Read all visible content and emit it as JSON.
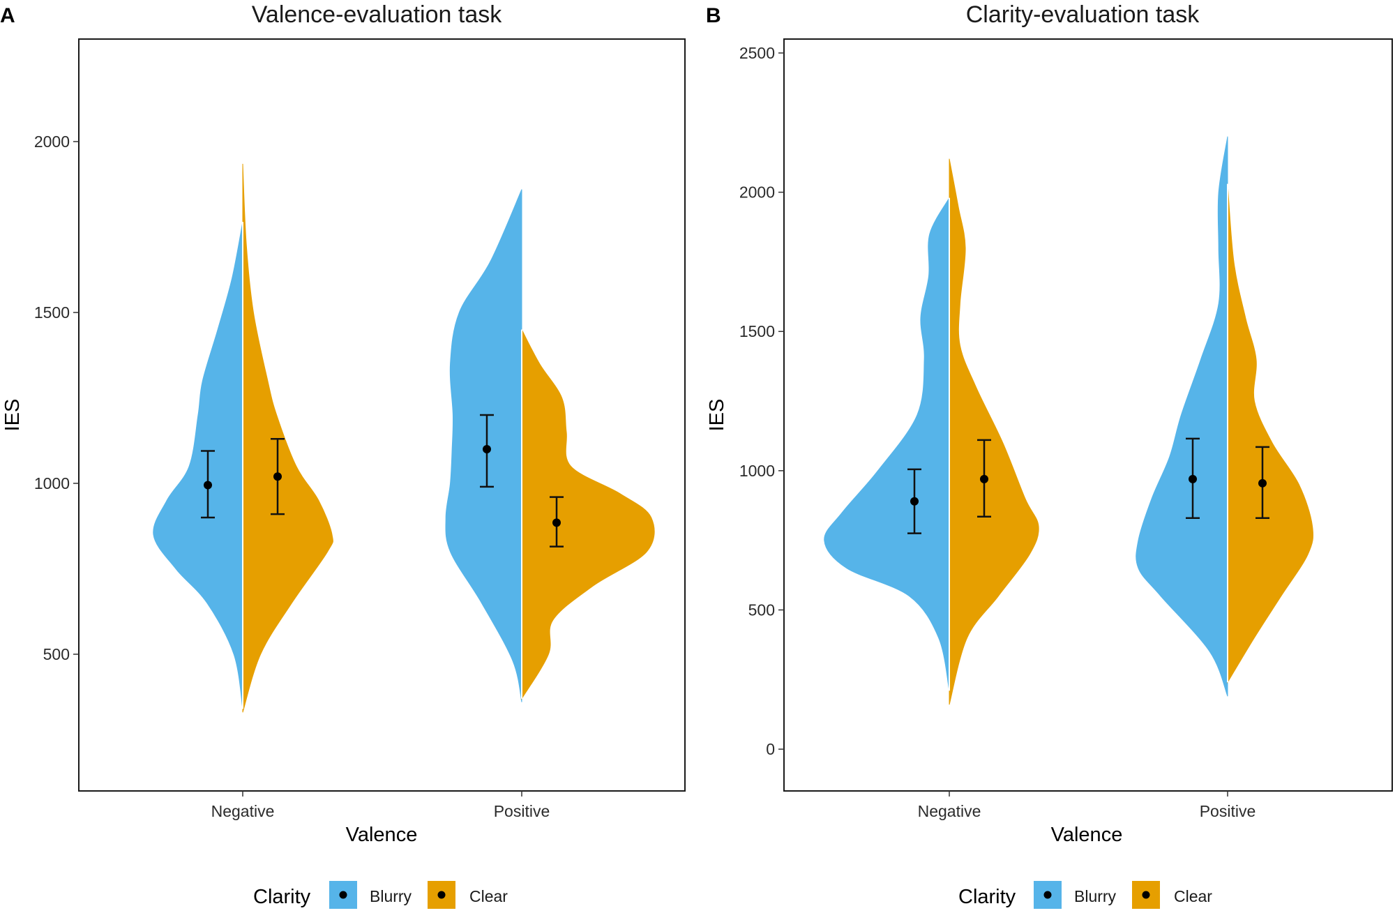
{
  "legend": {
    "title": "Clarity",
    "items": [
      {
        "label": "Blurry",
        "color": "#56B4E9"
      },
      {
        "label": "Clear",
        "color": "#E69F00"
      }
    ]
  },
  "chart_data": [
    {
      "tag": "A",
      "type": "split-violin",
      "title": "Valence-evaluation task",
      "xlabel": "Valence",
      "ylabel": "IES",
      "ylim": [
        100,
        2300
      ],
      "yticks": [
        500,
        1000,
        1500,
        2000
      ],
      "categories": [
        "Negative",
        "Positive"
      ],
      "series": [
        {
          "name": "Blurry",
          "color": "#56B4E9",
          "points": [
            {
              "category": "Negative",
              "mean": 995,
              "ci_low": 900,
              "ci_high": 1095,
              "density": [
                [
                  340,
                  0
                ],
                [
                  500,
                  0.1
                ],
                [
                  650,
                  0.4
                ],
                [
                  750,
                  0.75
                ],
                [
                  850,
                  1.0
                ],
                [
                  950,
                  0.85
                ],
                [
                  1050,
                  0.6
                ],
                [
                  1200,
                  0.5
                ],
                [
                  1300,
                  0.45
                ],
                [
                  1450,
                  0.28
                ],
                [
                  1600,
                  0.12
                ],
                [
                  1765,
                  0
                ]
              ]
            },
            {
              "category": "Positive",
              "mean": 1100,
              "ci_low": 990,
              "ci_high": 1200,
              "density": [
                [
                  360,
                  0
                ],
                [
                  480,
                  0.1
                ],
                [
                  650,
                  0.45
                ],
                [
                  800,
                  0.8
                ],
                [
                  900,
                  0.85
                ],
                [
                  1000,
                  0.8
                ],
                [
                  1100,
                  0.78
                ],
                [
                  1200,
                  0.77
                ],
                [
                  1350,
                  0.8
                ],
                [
                  1500,
                  0.7
                ],
                [
                  1650,
                  0.35
                ],
                [
                  1860,
                  0
                ]
              ]
            }
          ]
        },
        {
          "name": "Clear",
          "color": "#E69F00",
          "points": [
            {
              "category": "Negative",
              "mean": 1020,
              "ci_low": 910,
              "ci_high": 1130,
              "density": [
                [
                  330,
                  0
                ],
                [
                  500,
                  0.2
                ],
                [
                  650,
                  0.55
                ],
                [
                  800,
                  0.95
                ],
                [
                  850,
                  1.0
                ],
                [
                  950,
                  0.85
                ],
                [
                  1050,
                  0.6
                ],
                [
                  1200,
                  0.38
                ],
                [
                  1300,
                  0.28
                ],
                [
                  1500,
                  0.12
                ],
                [
                  1700,
                  0.04
                ],
                [
                  1935,
                  0
                ]
              ]
            },
            {
              "category": "Positive",
              "mean": 885,
              "ci_low": 815,
              "ci_high": 960,
              "density": [
                [
                  370,
                  0
                ],
                [
                  500,
                  0.3
                ],
                [
                  600,
                  0.35
                ],
                [
                  700,
                  0.8
                ],
                [
                  800,
                  1.4
                ],
                [
                  900,
                  1.45
                ],
                [
                  970,
                  1.1
                ],
                [
                  1050,
                  0.55
                ],
                [
                  1150,
                  0.5
                ],
                [
                  1250,
                  0.45
                ],
                [
                  1350,
                  0.2
                ],
                [
                  1450,
                  0
                ]
              ]
            }
          ]
        }
      ]
    },
    {
      "tag": "B",
      "type": "split-violin",
      "title": "Clarity-evaluation task",
      "xlabel": "Valence",
      "ylabel": "IES",
      "ylim": [
        -150,
        2550
      ],
      "yticks": [
        0,
        500,
        1000,
        1500,
        2000,
        2500
      ],
      "categories": [
        "Negative",
        "Positive"
      ],
      "series": [
        {
          "name": "Blurry",
          "color": "#56B4E9",
          "points": [
            {
              "category": "Negative",
              "mean": 890,
              "ci_low": 775,
              "ci_high": 1005,
              "density": [
                [
                  210,
                  0
                ],
                [
                  400,
                  0.12
                ],
                [
                  550,
                  0.45
                ],
                [
                  650,
                  1.15
                ],
                [
                  750,
                  1.4
                ],
                [
                  850,
                  1.2
                ],
                [
                  1000,
                  0.8
                ],
                [
                  1200,
                  0.36
                ],
                [
                  1400,
                  0.28
                ],
                [
                  1550,
                  0.32
                ],
                [
                  1700,
                  0.23
                ],
                [
                  1850,
                  0.22
                ],
                [
                  1980,
                  0
                ]
              ]
            },
            {
              "category": "Positive",
              "mean": 970,
              "ci_low": 830,
              "ci_high": 1115,
              "density": [
                [
                  190,
                  0
                ],
                [
                  350,
                  0.2
                ],
                [
                  550,
                  0.75
                ],
                [
                  650,
                  1.0
                ],
                [
                  750,
                  1.0
                ],
                [
                  900,
                  0.85
                ],
                [
                  1050,
                  0.65
                ],
                [
                  1200,
                  0.52
                ],
                [
                  1400,
                  0.3
                ],
                [
                  1600,
                  0.1
                ],
                [
                  1800,
                  0.1
                ],
                [
                  2000,
                  0.1
                ],
                [
                  2200,
                  0
                ]
              ]
            }
          ]
        },
        {
          "name": "Clear",
          "color": "#E69F00",
          "points": [
            {
              "category": "Negative",
              "mean": 970,
              "ci_low": 835,
              "ci_high": 1110,
              "density": [
                [
                  160,
                  0
                ],
                [
                  400,
                  0.2
                ],
                [
                  550,
                  0.55
                ],
                [
                  700,
                  0.9
                ],
                [
                  800,
                  1.0
                ],
                [
                  900,
                  0.85
                ],
                [
                  1100,
                  0.6
                ],
                [
                  1300,
                  0.3
                ],
                [
                  1450,
                  0.12
                ],
                [
                  1600,
                  0.12
                ],
                [
                  1800,
                  0.18
                ],
                [
                  1950,
                  0.1
                ],
                [
                  2120,
                  0
                ]
              ]
            },
            {
              "category": "Positive",
              "mean": 955,
              "ci_low": 830,
              "ci_high": 1085,
              "density": [
                [
                  240,
                  0
                ],
                [
                  400,
                  0.3
                ],
                [
                  550,
                  0.6
                ],
                [
                  700,
                  0.9
                ],
                [
                  800,
                  0.95
                ],
                [
                  950,
                  0.8
                ],
                [
                  1100,
                  0.5
                ],
                [
                  1250,
                  0.3
                ],
                [
                  1400,
                  0.32
                ],
                [
                  1550,
                  0.2
                ],
                [
                  1750,
                  0.07
                ],
                [
                  2030,
                  0
                ]
              ]
            }
          ]
        }
      ]
    }
  ]
}
